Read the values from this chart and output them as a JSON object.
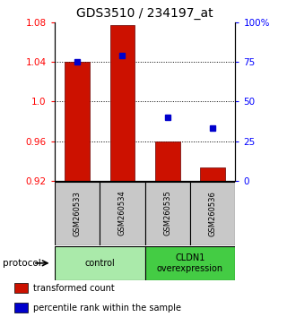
{
  "title": "GDS3510 / 234197_at",
  "samples": [
    "GSM260533",
    "GSM260534",
    "GSM260535",
    "GSM260536"
  ],
  "bar_values": [
    1.04,
    1.077,
    0.96,
    0.933
  ],
  "bar_bottom": 0.92,
  "percentile_values": [
    75,
    79,
    40,
    33
  ],
  "ylim_left": [
    0.92,
    1.08
  ],
  "ylim_right": [
    0,
    100
  ],
  "yticks_left": [
    0.92,
    0.96,
    1.0,
    1.04,
    1.08
  ],
  "yticks_right": [
    0,
    25,
    50,
    75,
    100
  ],
  "ytick_labels_right": [
    "0",
    "25",
    "50",
    "75",
    "100%"
  ],
  "dotted_lines": [
    1.04,
    1.0,
    0.96
  ],
  "bar_color": "#CC1100",
  "square_color": "#0000CC",
  "groups": [
    {
      "label": "control",
      "indices": [
        0,
        1
      ],
      "color": "#AAEAAA"
    },
    {
      "label": "CLDN1\noverexpression",
      "indices": [
        2,
        3
      ],
      "color": "#44CC44"
    }
  ],
  "protocol_label": "protocol",
  "legend_items": [
    {
      "color": "#CC1100",
      "label": "transformed count"
    },
    {
      "color": "#0000CC",
      "label": "percentile rank within the sample"
    }
  ],
  "bg_color": "#FFFFFF",
  "sample_box_color": "#C8C8C8",
  "title_fontsize": 10,
  "tick_fontsize": 7.5,
  "label_fontsize": 7.5
}
